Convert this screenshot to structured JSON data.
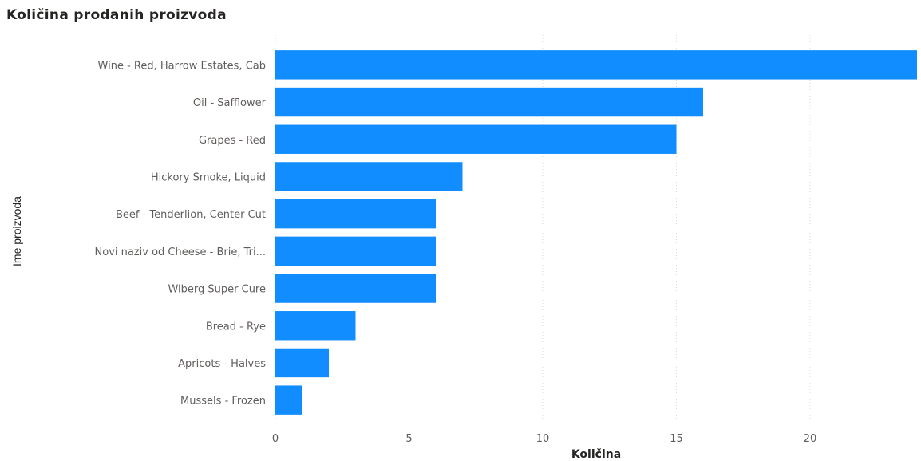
{
  "chart_data": {
    "type": "bar",
    "orientation": "horizontal",
    "title": "Količina prodanih proizvoda",
    "xlabel": "Količina",
    "ylabel": "Ime proizvoda",
    "categories": [
      "Wine - Red, Harrow Estates, Cab",
      "Oil - Safflower",
      "Grapes - Red",
      "Hickory Smoke, Liquid",
      "Beef - Tenderlion, Center Cut",
      "Novi naziv od Cheese - Brie, Tri...",
      "Wiberg Super Cure",
      "Bread - Rye",
      "Apricots - Halves",
      "Mussels - Frozen"
    ],
    "values": [
      24,
      16,
      15,
      7,
      6,
      6,
      6,
      3,
      2,
      1
    ],
    "xlim": [
      0,
      24
    ],
    "xticks": [
      0,
      5,
      10,
      15,
      20
    ],
    "grid": true,
    "color": "#118DFF"
  }
}
